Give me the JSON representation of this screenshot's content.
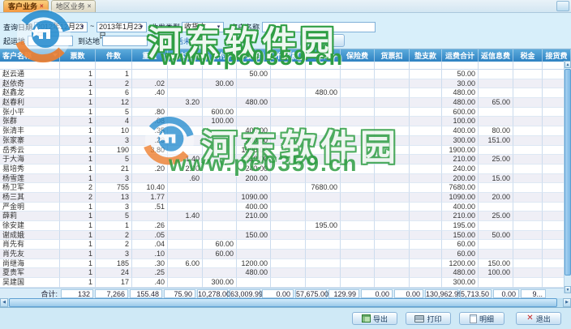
{
  "watermark": {
    "title": "河东软件园",
    "url": "www.pc0359.cn"
  },
  "tabs": [
    {
      "label": "客户业务",
      "active": true
    },
    {
      "label": "地区业务",
      "active": false
    }
  ],
  "toolbar": {
    "date_label": "查询日期",
    "date_from": "2012年12月23日",
    "range_sep": "~",
    "date_to": "2013年1月23日",
    "type_label": "收发类型",
    "type_value": "收货方",
    "customer_label": "客户名称",
    "customer_value": "",
    "origin_label": "起运地",
    "origin_value": "",
    "dest_label": "到达地",
    "dest_value": "",
    "checkbox_label": "包括未审核",
    "checkbox_checked": false,
    "search_label": "查询"
  },
  "table": {
    "columns": [
      "客户名称",
      "票数",
      "件数",
      "重量",
      "体积",
      "现付",
      "提付",
      "代收款",
      "回付",
      "保险费",
      "货票扣",
      "垫支款",
      "运费合计",
      "返信息费",
      "税金",
      "接货费"
    ],
    "rows": [
      [
        "赵云通",
        "1",
        "1",
        "",
        "",
        "",
        "50.00",
        "",
        "",
        "",
        "",
        "",
        "50.00",
        "",
        "",
        ""
      ],
      [
        "赵依奇",
        "1",
        "2",
        ".02",
        "",
        "30.00",
        "",
        "",
        "",
        "",
        "",
        "",
        "30.00",
        "",
        "",
        ""
      ],
      [
        "赵鑫龙",
        "1",
        "6",
        ".40",
        "",
        "",
        "",
        "",
        "480.00",
        "",
        "",
        "",
        "480.00",
        "",
        "",
        ""
      ],
      [
        "赵春利",
        "1",
        "12",
        "",
        "3.20",
        "",
        "480.00",
        "",
        "",
        "",
        "",
        "",
        "480.00",
        "65.00",
        "",
        ""
      ],
      [
        "张小平",
        "1",
        "5",
        ".80",
        "",
        "600.00",
        "",
        "",
        "",
        "",
        "",
        "",
        "600.00",
        "",
        "",
        ""
      ],
      [
        "张群",
        "1",
        "4",
        ".08",
        "",
        "100.00",
        "",
        "",
        "",
        "",
        "",
        "",
        "100.00",
        "",
        "",
        ""
      ],
      [
        "张清丰",
        "1",
        "10",
        ".35",
        "",
        "",
        "400.00",
        "",
        "",
        "",
        "",
        "",
        "400.00",
        "80.00",
        "",
        ""
      ],
      [
        "张家寨",
        "1",
        "3",
        ".20",
        "",
        "",
        "300.00",
        "",
        "",
        "",
        "",
        "",
        "300.00",
        "151.00",
        "",
        ""
      ],
      [
        "岳秀云",
        "1",
        "190",
        "3.80",
        "",
        "",
        "1900.00",
        "",
        "",
        "",
        "",
        "",
        "1900.00",
        "",
        "",
        ""
      ],
      [
        "于大海",
        "1",
        "5",
        "",
        "1.40",
        "",
        "210.00",
        "",
        "",
        "",
        "",
        "",
        "210.00",
        "25.00",
        "",
        ""
      ],
      [
        "易培秀",
        "1",
        "21",
        ".20",
        "2.00",
        "",
        "240.00",
        "",
        "",
        "",
        "",
        "",
        "240.00",
        "",
        "",
        ""
      ],
      [
        "杨雪莲",
        "1",
        "3",
        "",
        ".60",
        "",
        "200.00",
        "",
        "",
        "",
        "",
        "",
        "200.00",
        "15.00",
        "",
        ""
      ],
      [
        "杨卫军",
        "2",
        "755",
        "10.40",
        "",
        "",
        "",
        "",
        "7680.00",
        "",
        "",
        "",
        "7680.00",
        "",
        "",
        ""
      ],
      [
        "杨三其",
        "2",
        "13",
        "1.77",
        "",
        "",
        "1090.00",
        "",
        "",
        "",
        "",
        "",
        "1090.00",
        "20.00",
        "",
        ""
      ],
      [
        "严金明",
        "1",
        "3",
        ".51",
        "",
        "",
        "400.00",
        "",
        "",
        "",
        "",
        "",
        "400.00",
        "",
        "",
        ""
      ],
      [
        "薛莉",
        "1",
        "5",
        "",
        "1.40",
        "",
        "210.00",
        "",
        "",
        "",
        "",
        "",
        "210.00",
        "25.00",
        "",
        ""
      ],
      [
        "徐安建",
        "1",
        "1",
        ".26",
        "",
        "",
        "",
        "",
        "195.00",
        "",
        "",
        "",
        "195.00",
        "",
        "",
        ""
      ],
      [
        "谢成娥",
        "1",
        "2",
        ".05",
        "",
        "",
        "150.00",
        "",
        "",
        "",
        "",
        "",
        "150.00",
        "50.00",
        "",
        ""
      ],
      [
        "肖先有",
        "1",
        "2",
        ".04",
        "",
        "60.00",
        "",
        "",
        "",
        "",
        "",
        "",
        "60.00",
        "",
        "",
        ""
      ],
      [
        "肖先友",
        "1",
        "3",
        ".10",
        "",
        "60.00",
        "",
        "",
        "",
        "",
        "",
        "",
        "60.00",
        "",
        "",
        ""
      ],
      [
        "尚继海",
        "1",
        "185",
        ".30",
        "6.00",
        "",
        "1200.00",
        "",
        "",
        "",
        "",
        "",
        "1200.00",
        "150.00",
        "",
        ""
      ],
      [
        "夏贵军",
        "1",
        "24",
        ".25",
        "",
        "",
        "480.00",
        "",
        "",
        "",
        "",
        "",
        "480.00",
        "100.00",
        "",
        ""
      ],
      [
        "吴建国",
        "1",
        "17",
        ".40",
        "",
        "300.00",
        "",
        "",
        "",
        "",
        "",
        "",
        "300.00",
        "",
        "",
        ""
      ]
    ],
    "total_label": "合计:",
    "totals": [
      "132",
      "7,266",
      "155.48",
      "75.90",
      "10,278.00",
      "63,009.99",
      "0.00",
      "57,675.00",
      "129.99",
      "0.00",
      "0.00",
      "130,962.99",
      "5,713.50",
      "0.00",
      "9..."
    ]
  },
  "footer": {
    "buttons": [
      {
        "label": "导出"
      },
      {
        "label": "打印"
      },
      {
        "label": "明细"
      },
      {
        "label": "退出"
      }
    ]
  }
}
